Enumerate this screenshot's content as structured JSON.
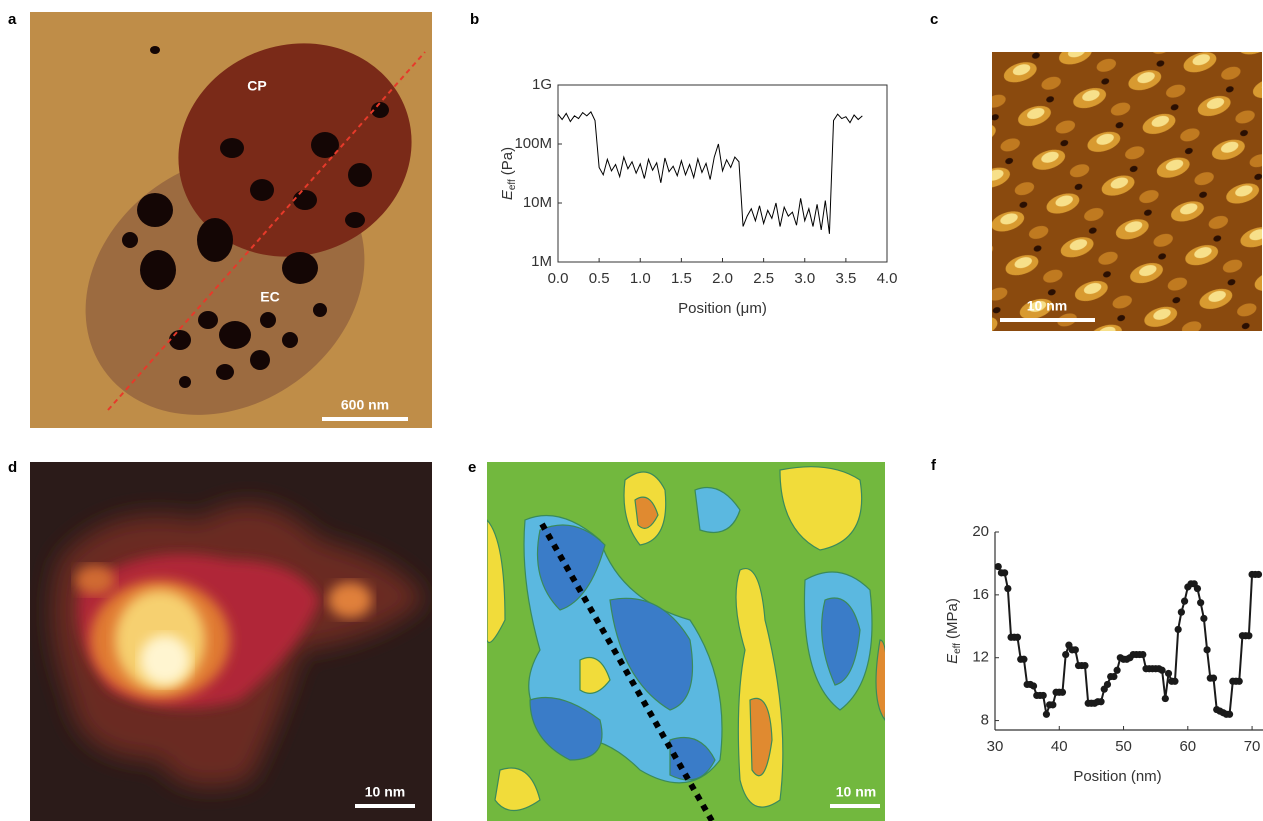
{
  "panel_labels": [
    "a",
    "b",
    "c",
    "d",
    "e",
    "f"
  ],
  "annotations": [
    "CP",
    "EC"
  ],
  "scale_bars": [
    "600 nm",
    "10 nm",
    "10 nm",
    "10 nm"
  ],
  "chart_data": [
    {
      "type": "line",
      "log_y": true,
      "frame": true,
      "xlabel": "Position (μm)",
      "ylabel": {
        "symbol": "E",
        "subscript": "eff",
        "unit": "(Pa)"
      },
      "xlim": [
        0,
        4
      ],
      "ylim": [
        1000000,
        1000000000
      ],
      "xticks": [
        {
          "value": 0,
          "label": "0.0"
        },
        0.5,
        {
          "value": 1,
          "label": "1.0"
        },
        1.5,
        {
          "value": 2,
          "label": "2.0"
        },
        2.5,
        {
          "value": 3,
          "label": "3.0"
        },
        3.5,
        {
          "value": 4,
          "label": "4.0"
        }
      ],
      "yticks": [
        {
          "value": 1000000,
          "label": "1M"
        },
        {
          "value": 10000000,
          "label": "10M"
        },
        {
          "value": 100000000,
          "label": "100M"
        },
        {
          "value": 1000000000,
          "label": "1G"
        }
      ],
      "series": [
        {
          "color": "#000000",
          "markers": false,
          "x": [
            0,
            0.05,
            0.1,
            0.15,
            0.2,
            0.25,
            0.3,
            0.35,
            0.4,
            0.45,
            0.5,
            0.55,
            0.6,
            0.65,
            0.7,
            0.75,
            0.8,
            0.85,
            0.9,
            0.95,
            1,
            1.05,
            1.1,
            1.15,
            1.2,
            1.25,
            1.3,
            1.35,
            1.4,
            1.45,
            1.5,
            1.55,
            1.6,
            1.65,
            1.7,
            1.75,
            1.8,
            1.85,
            1.9,
            1.95,
            2,
            2.05,
            2.1,
            2.15,
            2.2,
            2.25,
            2.3,
            2.35,
            2.4,
            2.45,
            2.5,
            2.55,
            2.6,
            2.65,
            2.7,
            2.75,
            2.8,
            2.85,
            2.9,
            2.95,
            3,
            3.05,
            3.1,
            3.15,
            3.2,
            3.25,
            3.3,
            3.35,
            3.4,
            3.45,
            3.5,
            3.55,
            3.6,
            3.65,
            3.7
          ],
          "values": [
            320000000,
            260000000,
            330000000,
            240000000,
            300000000,
            270000000,
            340000000,
            300000000,
            350000000,
            250000000,
            40000000,
            30000000,
            55000000,
            35000000,
            45000000,
            28000000,
            60000000,
            38000000,
            50000000,
            32000000,
            46000000,
            26000000,
            55000000,
            36000000,
            48000000,
            22000000,
            58000000,
            34000000,
            42000000,
            29000000,
            52000000,
            30000000,
            45000000,
            27000000,
            56000000,
            33000000,
            47000000,
            25000000,
            60000000,
            100000000,
            35000000,
            54000000,
            40000000,
            60000000,
            50000000,
            4000000,
            6000000,
            8000000,
            5000000,
            9000000,
            4500000,
            7500000,
            5500000,
            10000000,
            4000000,
            8500000,
            6000000,
            7000000,
            4200000,
            12000000,
            5000000,
            8000000,
            4000000,
            9500000,
            3500000,
            11000000,
            3000000,
            250000000,
            320000000,
            270000000,
            290000000,
            230000000,
            310000000,
            260000000,
            300000000
          ]
        }
      ]
    },
    {
      "type": "line",
      "log_y": false,
      "frame": false,
      "xlabel": "Position (nm)",
      "ylabel": {
        "symbol": "E",
        "subscript": "eff",
        "unit": "(MPa)"
      },
      "xlim": [
        30,
        71.7
      ],
      "ylim": [
        7.4,
        20
      ],
      "xticks": [
        30,
        40,
        50,
        60,
        70
      ],
      "yticks": [
        8,
        12,
        16,
        20
      ],
      "series": [
        {
          "color": "#1a1a1a",
          "markers": true,
          "x": [
            30.5,
            31,
            31.5,
            32,
            32.5,
            33,
            33.5,
            34,
            34.5,
            35,
            35.5,
            36,
            36.5,
            37,
            37.5,
            38,
            38.5,
            39,
            39.5,
            40,
            40.5,
            41,
            41.5,
            42,
            42.5,
            43,
            43.5,
            44,
            44.5,
            45,
            45.5,
            46,
            46.5,
            47,
            47.5,
            48,
            48.5,
            49,
            49.5,
            50,
            50.5,
            51,
            51.5,
            52,
            52.5,
            53,
            53.5,
            54,
            54.5,
            55,
            55.5,
            56,
            56.5,
            57,
            57.5,
            58,
            58.5,
            59,
            59.5,
            60,
            60.5,
            61,
            61.5,
            62,
            62.5,
            63,
            63.5,
            64,
            64.5,
            65,
            65.5,
            66,
            66.5,
            67,
            67.5,
            68,
            68.5,
            69,
            69.5,
            70,
            70.5,
            71
          ],
          "values": [
            17.8,
            17.4,
            17.4,
            16.4,
            13.3,
            13.3,
            13.3,
            11.9,
            11.9,
            10.3,
            10.3,
            10.2,
            9.6,
            9.6,
            9.6,
            8.4,
            9,
            9,
            9.8,
            9.8,
            9.8,
            12.2,
            12.8,
            12.5,
            12.5,
            11.5,
            11.5,
            11.5,
            9.1,
            9.1,
            9.1,
            9.2,
            9.2,
            10,
            10.3,
            10.8,
            10.8,
            11.2,
            12,
            11.9,
            11.9,
            12,
            12.2,
            12.2,
            12.2,
            12.2,
            11.3,
            11.3,
            11.3,
            11.3,
            11.3,
            11.2,
            9.4,
            11,
            10.5,
            10.5,
            13.8,
            14.9,
            15.6,
            16.5,
            16.7,
            16.7,
            16.4,
            15.5,
            14.5,
            12.5,
            10.7,
            10.7,
            8.7,
            8.6,
            8.5,
            8.4,
            8.4,
            10.5,
            10.5,
            10.5,
            13.4,
            13.4,
            13.4,
            17.3,
            17.3,
            17.3
          ]
        }
      ]
    }
  ]
}
